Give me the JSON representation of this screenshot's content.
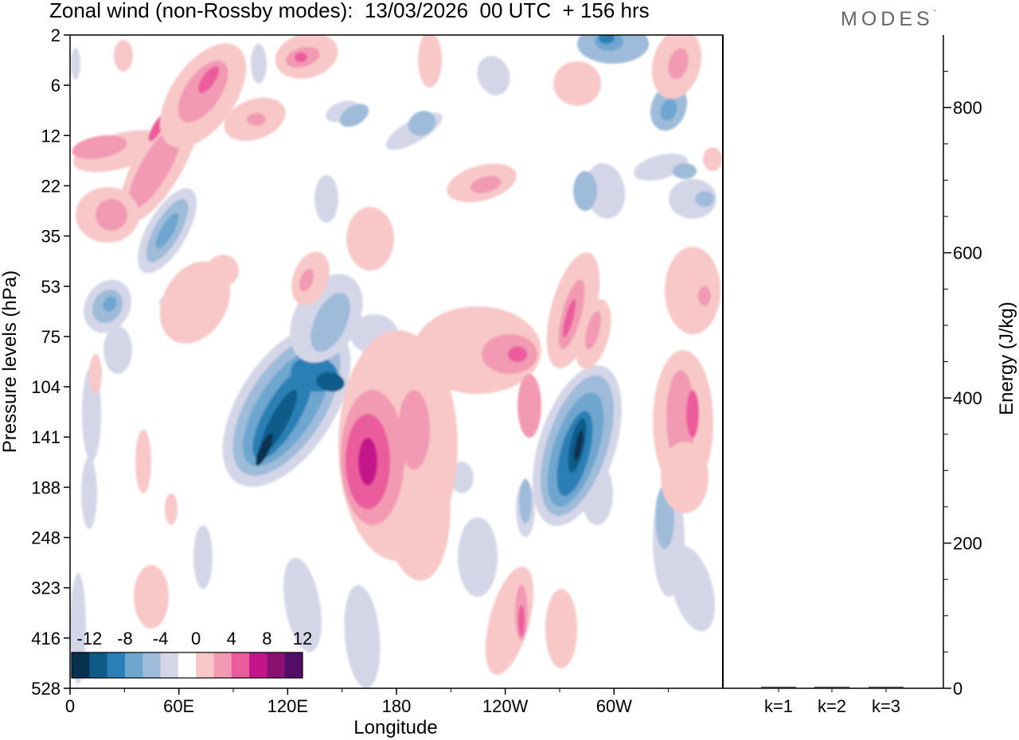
{
  "chart_data": {
    "type": "heatmap",
    "title": "Zonal wind (non-Rossby modes):  13/03/2026  00 UTC  + 156 hrs",
    "brand": "MODES",
    "brand_mark": "°",
    "xlabel": "Longitude",
    "ylabel": "Pressure levels (hPa)",
    "x_ticks": [
      "0",
      "60E",
      "120E",
      "180",
      "120W",
      "60W"
    ],
    "x_range": [
      0,
      360
    ],
    "y_ticks": [
      "2",
      "6",
      "12",
      "22",
      "35",
      "53",
      "75",
      "104",
      "141",
      "188",
      "248",
      "323",
      "416",
      "528"
    ],
    "colorbar": {
      "labels": [
        "-12",
        "-8",
        "-4",
        "0",
        "4",
        "8",
        "12"
      ],
      "bins": [
        -14,
        -12,
        -10,
        -8,
        -6,
        -4,
        -2,
        2,
        4,
        6,
        8,
        10,
        12,
        14
      ],
      "colors": [
        "#08304f",
        "#0e5b8a",
        "#2a7fb5",
        "#6ea6cf",
        "#9fbbda",
        "#d4d6e8",
        "#ffffff",
        "#f8c8c8",
        "#f29ab4",
        "#eb5c9c",
        "#c4148a",
        "#8a1172",
        "#530e6a"
      ]
    },
    "features": [
      {
        "name": "upper-troposphere negative jet near 120E",
        "sign": "negative",
        "lon": 113,
        "level_hPa": 141,
        "max_abs": 12
      },
      {
        "name": "positive core near 165E",
        "sign": "positive",
        "lon": 165,
        "level_hPa": 141,
        "max_abs": 8
      },
      {
        "name": "negative core near 60W",
        "sign": "negative",
        "lon": 288,
        "level_hPa": 141,
        "max_abs": 12
      },
      {
        "name": "positive core near 30W",
        "sign": "positive",
        "lon": 333,
        "level_hPa": 141,
        "max_abs": 6
      },
      {
        "name": "stratospheric positive band",
        "sign": "positive",
        "lon": 40,
        "level_hPa": 12,
        "max_abs": 8
      },
      {
        "name": "stratospheric negative band",
        "sign": "negative",
        "lon": 50,
        "level_hPa": 35,
        "max_abs": 6
      }
    ],
    "energy_panel": {
      "type": "bar",
      "ylabel": "Energy (J/kg)",
      "categories": [
        "k=1",
        "k=2",
        "k=3"
      ],
      "values": [
        1,
        1,
        1
      ],
      "ylim": [
        0,
        900
      ],
      "y_ticks": [
        0,
        200,
        400,
        600,
        800
      ]
    }
  }
}
